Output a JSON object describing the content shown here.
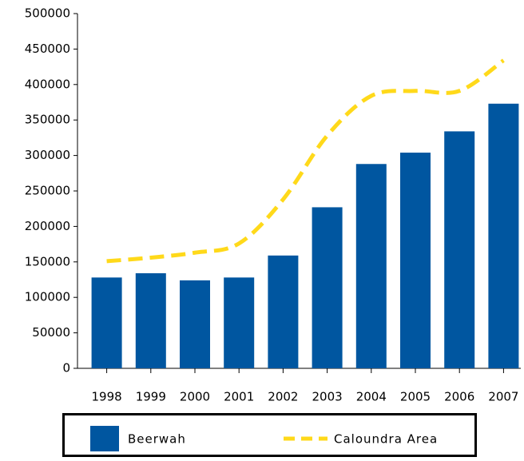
{
  "chart_data": {
    "type": "bar",
    "categories": [
      "1998",
      "1999",
      "2000",
      "2001",
      "2002",
      "2003",
      "2004",
      "2005",
      "2006",
      "2007"
    ],
    "series": [
      {
        "name": "Beerwah",
        "type": "bar",
        "color": "#0056a0",
        "values": [
          128000,
          134000,
          124000,
          128000,
          159000,
          227000,
          288000,
          304000,
          334000,
          373000
        ]
      },
      {
        "name": "Caloundra Area",
        "type": "line",
        "color": "#ffd91a",
        "values": [
          151000,
          156000,
          163000,
          176000,
          238000,
          328000,
          384000,
          391000,
          391000,
          434000
        ]
      }
    ],
    "ylim": [
      0,
      500000
    ],
    "yticks": [
      0,
      50000,
      100000,
      150000,
      200000,
      250000,
      300000,
      350000,
      400000,
      450000,
      500000
    ]
  }
}
